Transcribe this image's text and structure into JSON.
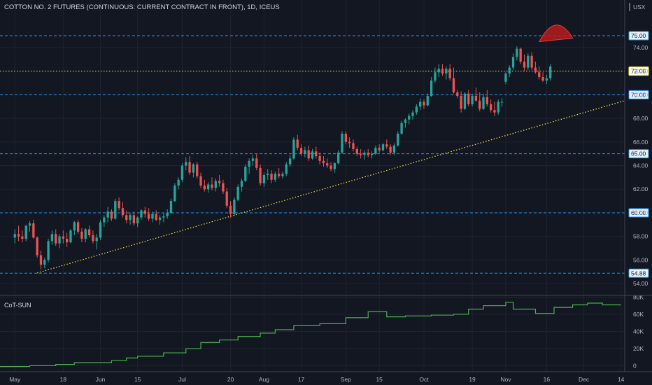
{
  "header": {
    "title": "COTTON NO. 2 FUTURES (CONTINUOUS: CURRENT CONTRACT IN FRONT), 1D, ICEUS",
    "currency": "USX"
  },
  "indicator": {
    "label": "CoT-SUN"
  },
  "colors": {
    "background": "#131722",
    "up": "#26a69a",
    "down": "#ef5350",
    "dashed_level": "#2196f3",
    "dotted_level": "#f5e94a",
    "indicator_line": "#4caf50",
    "annotation": "#b71c1c"
  },
  "chart_data": {
    "type": "candlestick",
    "title": "COTTON NO. 2 FUTURES (CONTINUOUS: CURRENT CONTRACT IN FRONT), 1D, ICEUS",
    "price_axis": {
      "range": [
        53.0,
        76.9
      ],
      "ticks": [
        "54.00",
        "56.00",
        "58.00",
        "60.00",
        "62.00",
        "64.00",
        "66.00",
        "68.00",
        "70.00",
        "72.00",
        "74.00"
      ],
      "unit": "USX"
    },
    "time_axis": {
      "labels": [
        {
          "text": "May",
          "idx": 0
        },
        {
          "text": "18",
          "idx": 13
        },
        {
          "text": "Jun",
          "idx": 23
        },
        {
          "text": "15",
          "idx": 33
        },
        {
          "text": "Jul",
          "idx": 45
        },
        {
          "text": "20",
          "idx": 58
        },
        {
          "text": "Aug",
          "idx": 67
        },
        {
          "text": "17",
          "idx": 77
        },
        {
          "text": "Sep",
          "idx": 89
        },
        {
          "text": "15",
          "idx": 98
        },
        {
          "text": "Oct",
          "idx": 110
        },
        {
          "text": "19",
          "idx": 123
        },
        {
          "text": "Nov",
          "idx": 132
        },
        {
          "text": "16",
          "idx": 143
        },
        {
          "text": "Dec",
          "idx": 153
        },
        {
          "text": "14",
          "idx": 163
        }
      ],
      "range_idx": [
        -4,
        164
      ]
    },
    "levels": [
      {
        "value": 75.0,
        "label": "75.00",
        "style": "dashed",
        "color": "#2196f3"
      },
      {
        "value": 72.0,
        "label": "72.00",
        "style": "dotted",
        "color": "#f5e94a"
      },
      {
        "value": 70.0,
        "label": "70.00",
        "style": "dashed",
        "color": "#2196f3"
      },
      {
        "value": 65.0,
        "label": "65.00",
        "style": "dashed",
        "color": "#2196f3"
      },
      {
        "value": 60.0,
        "label": "60.00",
        "style": "dashed",
        "color": "#2196f3"
      },
      {
        "value": 54.88,
        "label": "54.88",
        "style": "dashed",
        "color": "#2196f3"
      }
    ],
    "trendline": {
      "from": {
        "idx": 6,
        "value": 54.9
      },
      "to": {
        "idx": 164,
        "value": 69.5
      },
      "style": "dotted",
      "color": "#f5e94a"
    },
    "annotation": {
      "type": "arc",
      "from": {
        "idx": 141,
        "value": 74.5
      },
      "to": {
        "idx": 150,
        "value": 74.8
      },
      "peak_value": 75.9
    },
    "ohlc": [
      [
        57.9,
        58.6,
        57.4,
        58.2
      ],
      [
        58.2,
        58.9,
        57.6,
        58.0
      ],
      [
        58.0,
        58.5,
        57.5,
        57.8
      ],
      [
        57.8,
        59.0,
        57.6,
        58.9
      ],
      [
        58.9,
        59.3,
        58.4,
        59.1
      ],
      [
        59.1,
        59.4,
        57.8,
        57.9
      ],
      [
        57.9,
        58.0,
        56.2,
        56.4
      ],
      [
        56.4,
        56.8,
        55.2,
        55.6
      ],
      [
        55.6,
        56.2,
        55.3,
        56.0
      ],
      [
        56.0,
        57.8,
        55.8,
        57.6
      ],
      [
        57.6,
        58.5,
        57.3,
        58.2
      ],
      [
        58.2,
        58.6,
        57.2,
        57.4
      ],
      [
        57.4,
        58.2,
        57.0,
        58.0
      ],
      [
        58.0,
        58.5,
        57.4,
        57.8
      ],
      [
        57.8,
        58.3,
        57.1,
        57.5
      ],
      [
        57.5,
        58.6,
        57.4,
        58.5
      ],
      [
        58.5,
        59.3,
        58.1,
        59.2
      ],
      [
        59.2,
        59.4,
        58.2,
        58.4
      ],
      [
        58.4,
        58.7,
        57.5,
        57.8
      ],
      [
        57.8,
        58.7,
        57.5,
        58.6
      ],
      [
        58.6,
        58.9,
        57.9,
        58.1
      ],
      [
        58.1,
        58.5,
        57.4,
        57.6
      ],
      [
        57.6,
        58.2,
        56.9,
        57.9
      ],
      [
        57.9,
        59.4,
        57.7,
        59.2
      ],
      [
        59.2,
        59.8,
        58.8,
        59.6
      ],
      [
        59.6,
        60.5,
        59.2,
        60.1
      ],
      [
        60.1,
        60.3,
        59.3,
        59.5
      ],
      [
        59.5,
        61.2,
        59.4,
        61.0
      ],
      [
        61.0,
        61.3,
        60.2,
        60.4
      ],
      [
        60.4,
        60.9,
        59.6,
        59.8
      ],
      [
        59.8,
        60.2,
        59.1,
        59.4
      ],
      [
        59.4,
        60.0,
        59.0,
        59.8
      ],
      [
        59.8,
        60.1,
        58.9,
        59.1
      ],
      [
        59.1,
        59.7,
        58.8,
        59.6
      ],
      [
        59.6,
        60.3,
        59.4,
        60.2
      ],
      [
        60.2,
        60.5,
        59.6,
        59.9
      ],
      [
        59.9,
        60.4,
        59.3,
        59.5
      ],
      [
        59.5,
        60.1,
        59.2,
        59.9
      ],
      [
        59.9,
        60.2,
        59.3,
        59.4
      ],
      [
        59.4,
        59.8,
        59.0,
        59.6
      ],
      [
        59.6,
        60.0,
        59.2,
        59.7
      ],
      [
        59.7,
        60.3,
        59.5,
        60.0
      ],
      [
        60.0,
        61.2,
        59.9,
        61.0
      ],
      [
        61.0,
        62.5,
        60.9,
        62.3
      ],
      [
        62.3,
        63.0,
        62.0,
        62.8
      ],
      [
        62.8,
        64.2,
        62.6,
        64.0
      ],
      [
        64.0,
        64.7,
        63.6,
        64.3
      ],
      [
        64.3,
        64.8,
        63.2,
        63.4
      ],
      [
        63.4,
        64.2,
        63.0,
        64.1
      ],
      [
        64.1,
        64.3,
        62.9,
        63.1
      ],
      [
        63.1,
        63.4,
        62.1,
        62.3
      ],
      [
        62.3,
        62.8,
        61.8,
        62.0
      ],
      [
        62.0,
        62.6,
        61.7,
        62.4
      ],
      [
        62.4,
        63.0,
        61.9,
        62.1
      ],
      [
        62.1,
        62.9,
        61.8,
        62.7
      ],
      [
        62.7,
        63.2,
        62.2,
        62.5
      ],
      [
        62.5,
        62.8,
        61.6,
        61.8
      ],
      [
        61.8,
        62.1,
        60.4,
        60.6
      ],
      [
        60.6,
        61.0,
        59.6,
        59.9
      ],
      [
        59.9,
        61.3,
        59.7,
        61.1
      ],
      [
        61.1,
        62.4,
        61.0,
        62.2
      ],
      [
        62.2,
        62.9,
        61.8,
        62.7
      ],
      [
        62.7,
        64.1,
        62.6,
        63.9
      ],
      [
        63.9,
        64.6,
        63.3,
        64.4
      ],
      [
        64.4,
        64.9,
        64.0,
        64.6
      ],
      [
        64.6,
        65.0,
        63.6,
        63.8
      ],
      [
        63.8,
        64.1,
        62.3,
        62.5
      ],
      [
        62.5,
        63.4,
        62.2,
        63.2
      ],
      [
        63.2,
        63.7,
        62.8,
        63.3
      ],
      [
        63.3,
        63.6,
        62.5,
        62.8
      ],
      [
        62.8,
        63.5,
        62.6,
        63.3
      ],
      [
        63.3,
        63.8,
        62.9,
        63.1
      ],
      [
        63.1,
        63.5,
        62.9,
        63.3
      ],
      [
        63.3,
        64.3,
        63.1,
        64.1
      ],
      [
        64.1,
        64.9,
        63.9,
        64.6
      ],
      [
        64.6,
        66.4,
        64.5,
        66.2
      ],
      [
        66.2,
        66.6,
        65.3,
        65.5
      ],
      [
        65.5,
        65.8,
        64.8,
        65.0
      ],
      [
        65.0,
        65.6,
        64.7,
        65.3
      ],
      [
        65.3,
        65.7,
        64.4,
        64.6
      ],
      [
        64.6,
        65.4,
        64.5,
        65.2
      ],
      [
        65.2,
        65.6,
        64.6,
        64.8
      ],
      [
        64.8,
        65.1,
        64.1,
        64.4
      ],
      [
        64.4,
        64.8,
        63.9,
        64.2
      ],
      [
        64.2,
        64.6,
        63.8,
        64.0
      ],
      [
        64.0,
        64.3,
        63.5,
        63.7
      ],
      [
        63.7,
        64.3,
        63.4,
        64.2
      ],
      [
        64.2,
        65.3,
        64.1,
        65.1
      ],
      [
        65.1,
        66.9,
        65.0,
        66.7
      ],
      [
        66.7,
        66.9,
        65.8,
        66.0
      ],
      [
        66.0,
        66.4,
        65.5,
        65.9
      ],
      [
        65.9,
        66.2,
        65.2,
        65.4
      ],
      [
        65.4,
        65.6,
        64.8,
        65.0
      ],
      [
        65.0,
        65.4,
        64.6,
        64.9
      ],
      [
        64.9,
        65.3,
        64.5,
        65.1
      ],
      [
        65.1,
        65.4,
        64.7,
        64.9
      ],
      [
        64.9,
        65.2,
        64.6,
        65.0
      ],
      [
        65.0,
        65.7,
        64.9,
        65.5
      ],
      [
        65.5,
        65.8,
        65.1,
        65.3
      ],
      [
        65.3,
        65.9,
        65.2,
        65.8
      ],
      [
        65.8,
        66.2,
        65.4,
        65.6
      ],
      [
        65.6,
        65.8,
        64.9,
        65.1
      ],
      [
        65.1,
        65.9,
        64.9,
        65.7
      ],
      [
        65.7,
        66.9,
        65.6,
        66.7
      ],
      [
        66.7,
        67.8,
        66.6,
        67.6
      ],
      [
        67.6,
        68.0,
        67.2,
        67.9
      ],
      [
        67.9,
        68.4,
        67.5,
        68.2
      ],
      [
        68.2,
        68.7,
        67.9,
        68.5
      ],
      [
        68.5,
        69.2,
        68.3,
        69.0
      ],
      [
        69.0,
        69.7,
        68.7,
        69.4
      ],
      [
        69.4,
        69.6,
        68.8,
        69.1
      ],
      [
        69.1,
        70.1,
        69.0,
        69.9
      ],
      [
        69.9,
        71.5,
        69.8,
        71.2
      ],
      [
        71.2,
        72.3,
        71.0,
        71.9
      ],
      [
        71.9,
        72.6,
        71.5,
        72.2
      ],
      [
        72.2,
        72.6,
        71.6,
        71.8
      ],
      [
        71.8,
        72.4,
        71.3,
        72.2
      ],
      [
        72.2,
        72.6,
        71.2,
        71.4
      ],
      [
        71.4,
        72.3,
        70.1,
        70.2
      ],
      [
        70.2,
        70.4,
        69.7,
        69.9
      ],
      [
        69.9,
        70.3,
        68.5,
        68.8
      ],
      [
        68.8,
        70.2,
        68.7,
        70.1
      ],
      [
        70.1,
        70.4,
        69.0,
        69.2
      ],
      [
        69.2,
        70.1,
        69.0,
        69.9
      ],
      [
        69.9,
        70.6,
        69.4,
        69.5
      ],
      [
        69.5,
        70.2,
        68.6,
        68.8
      ],
      [
        68.8,
        70.1,
        68.7,
        69.8
      ],
      [
        69.8,
        70.4,
        69.0,
        69.2
      ],
      [
        69.2,
        69.6,
        68.5,
        68.7
      ],
      [
        68.7,
        69.4,
        68.2,
        68.5
      ],
      [
        68.5,
        69.6,
        68.3,
        69.4
      ],
      [
        69.4,
        69.7,
        69.0,
        69.4
      ],
      [
        71.1,
        71.9,
        70.9,
        71.8
      ],
      [
        71.8,
        72.5,
        71.5,
        72.3
      ],
      [
        72.3,
        73.5,
        72.1,
        73.2
      ],
      [
        73.2,
        74.1,
        72.9,
        73.9
      ],
      [
        73.9,
        74.0,
        72.6,
        72.8
      ],
      [
        72.8,
        73.4,
        72.0,
        72.3
      ],
      [
        72.3,
        73.5,
        72.1,
        73.3
      ],
      [
        73.3,
        73.6,
        72.1,
        72.3
      ],
      [
        72.3,
        72.8,
        71.8,
        71.9
      ],
      [
        71.9,
        72.4,
        71.3,
        71.5
      ],
      [
        71.5,
        71.9,
        71.1,
        71.2
      ],
      [
        71.2,
        71.7,
        70.9,
        71.4
      ],
      [
        71.4,
        72.6,
        71.2,
        72.4
      ]
    ],
    "indicator": {
      "name": "CoT-SUN",
      "range": [
        -7000,
        82000
      ],
      "ticks": [
        "0",
        "20K",
        "40K",
        "60K",
        "80K"
      ],
      "segments": [
        [
          -4,
          -1000
        ],
        [
          4,
          0
        ],
        [
          11,
          1500
        ],
        [
          16,
          3500
        ],
        [
          26,
          6000
        ],
        [
          30,
          9000
        ],
        [
          33,
          11000
        ],
        [
          40,
          15000
        ],
        [
          46,
          20000
        ],
        [
          50,
          27000
        ],
        [
          55,
          30000
        ],
        [
          60,
          34000
        ],
        [
          66,
          38000
        ],
        [
          70,
          42000
        ],
        [
          75,
          47000
        ],
        [
          82,
          49000
        ],
        [
          89,
          56000
        ],
        [
          95,
          63000
        ],
        [
          100,
          57000
        ],
        [
          105,
          58000
        ],
        [
          112,
          59000
        ],
        [
          118,
          60000
        ],
        [
          122,
          66000
        ],
        [
          126,
          70000
        ],
        [
          132,
          74000
        ],
        [
          134,
          66000
        ],
        [
          140,
          61000
        ],
        [
          145,
          68000
        ],
        [
          150,
          71000
        ],
        [
          154,
          73000
        ],
        [
          158,
          71000
        ],
        [
          163,
          71000
        ]
      ]
    }
  }
}
